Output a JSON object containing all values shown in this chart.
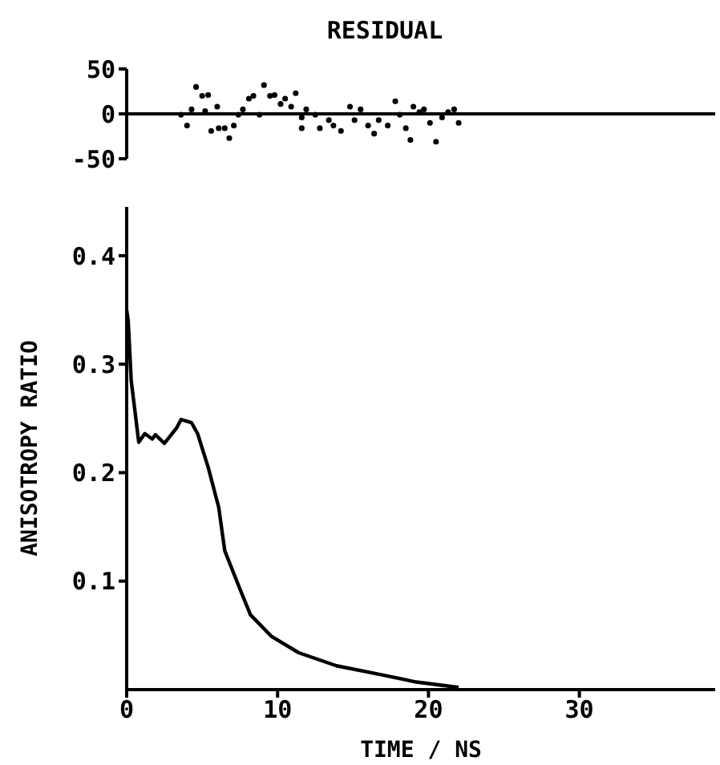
{
  "chart_data": [
    {
      "type": "scatter",
      "title": "RESIDUAL",
      "xlim": [
        0,
        39
      ],
      "ylim": [
        -50,
        50
      ],
      "yticks": [
        -50,
        0,
        50
      ],
      "tick_labels": "y",
      "marker": "circle",
      "ref_lines": [
        {
          "axis": "y",
          "value": 0
        }
      ],
      "x": [
        3.6,
        4.0,
        4.3,
        4.6,
        5.0,
        5.2,
        5.4,
        5.6,
        6.0,
        6.1,
        6.5,
        6.8,
        7.1,
        7.4,
        7.7,
        8.1,
        8.4,
        8.8,
        9.1,
        9.5,
        9.8,
        10.2,
        10.5,
        10.9,
        11.2,
        11.6,
        11.6,
        11.9,
        12.5,
        12.8,
        13.4,
        13.7,
        14.2,
        14.8,
        15.1,
        15.5,
        16.0,
        16.4,
        16.7,
        17.3,
        17.8,
        18.1,
        18.5,
        18.8,
        19.0,
        19.4,
        19.7,
        20.1,
        20.5,
        20.9,
        21.3,
        21.7,
        22.0
      ],
      "series": [
        {
          "color": "#000000",
          "values": [
            -1,
            -13,
            5,
            30,
            20,
            3,
            21,
            -19,
            8,
            -16,
            -16,
            -27,
            -13,
            -1,
            5,
            17,
            20,
            -1,
            32,
            20,
            21,
            11,
            17,
            8,
            23,
            -4,
            -16,
            5,
            -1,
            -16,
            -7,
            -13,
            -19,
            8,
            -7,
            5,
            -13,
            -22,
            -7,
            -13,
            14,
            -1,
            -16,
            -29,
            8,
            2,
            5,
            -10,
            -31,
            -4,
            2,
            5,
            -10
          ]
        }
      ]
    },
    {
      "type": "line",
      "xlabel": "TIME / NS",
      "ylabel": "ANISOTROPY RATIO",
      "xlim": [
        0,
        39
      ],
      "xticks": [
        0,
        10,
        20,
        30
      ],
      "ylim": [
        0,
        0.445
      ],
      "yticks": [
        0.1,
        0.2,
        0.3,
        0.4
      ],
      "x": [
        0,
        0.1,
        0.3,
        0.8,
        1.2,
        1.7,
        1.9,
        2.5,
        3.3,
        3.6,
        4.3,
        4.7,
        5.4,
        6.1,
        6.5,
        7.5,
        8.2,
        9.6,
        11.4,
        13.9,
        16.4,
        19.2,
        22.0
      ],
      "series": [
        {
          "color": "#000000",
          "values": [
            0.35,
            0.34,
            0.285,
            0.228,
            0.236,
            0.231,
            0.235,
            0.227,
            0.241,
            0.249,
            0.246,
            0.236,
            0.205,
            0.168,
            0.128,
            0.093,
            0.069,
            0.049,
            0.034,
            0.022,
            0.015,
            0.007,
            0.002
          ]
        }
      ]
    }
  ]
}
